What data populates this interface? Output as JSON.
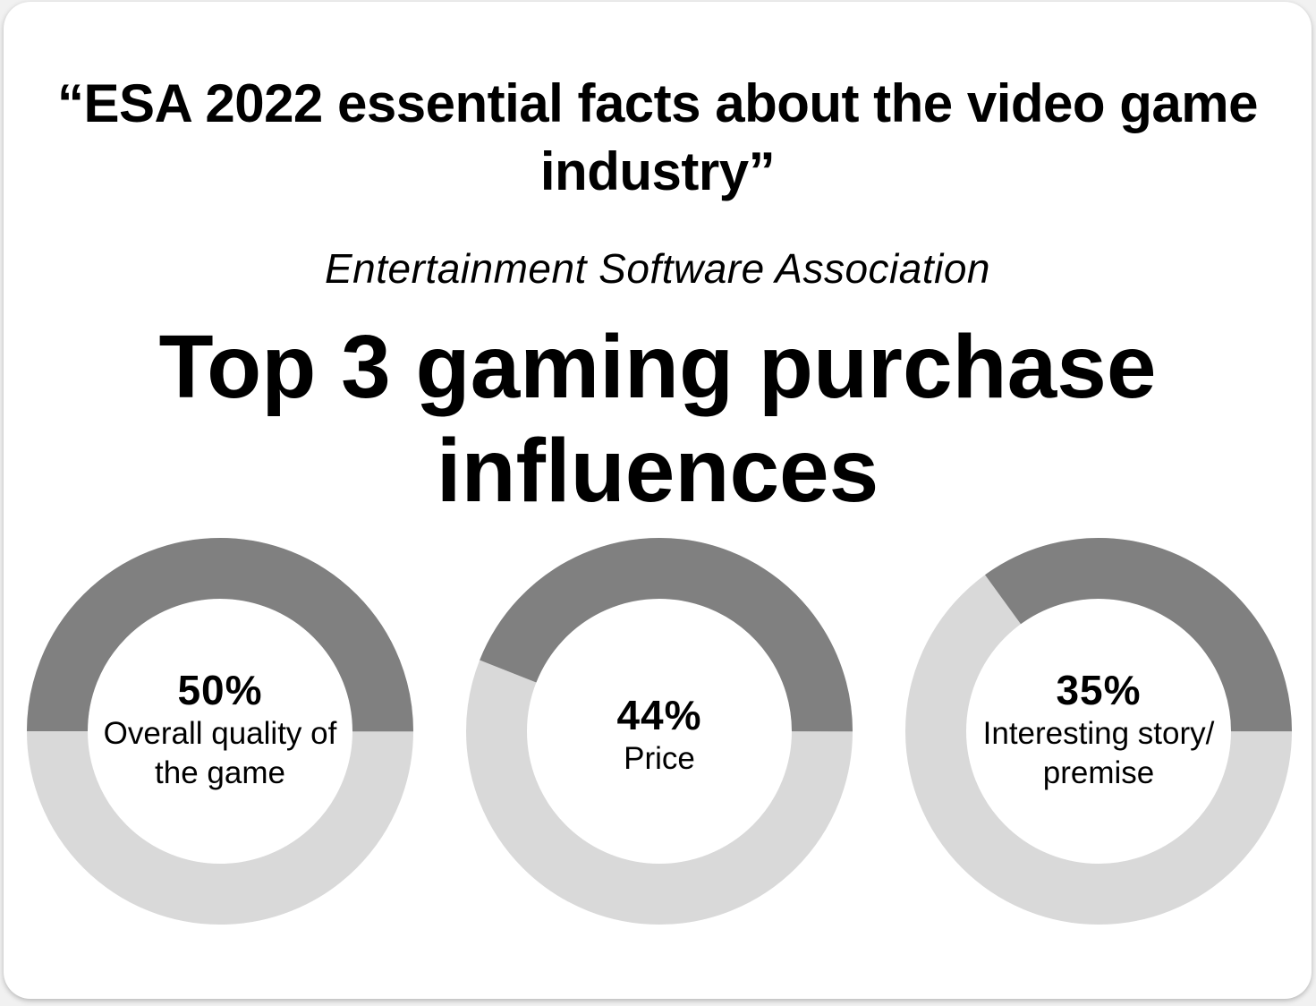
{
  "source": {
    "title": "“ESA 2022 essential facts about the video game industry”",
    "organization": "Entertainment Software Association"
  },
  "chart_data": {
    "type": "pie",
    "title": "Top 3 gaming purchase influences",
    "series": [
      {
        "value_label": "50%",
        "value": 50,
        "label_lines": [
          "Overall quality of",
          "the game"
        ]
      },
      {
        "value_label": "44%",
        "value": 44,
        "label_lines": [
          "Price"
        ]
      },
      {
        "value_label": "35%",
        "value": 35,
        "label_lines": [
          "Interesting story/",
          "premise"
        ]
      }
    ],
    "colors": {
      "value_segment": "#808080",
      "remainder_segment": "#d9d9d9"
    }
  }
}
